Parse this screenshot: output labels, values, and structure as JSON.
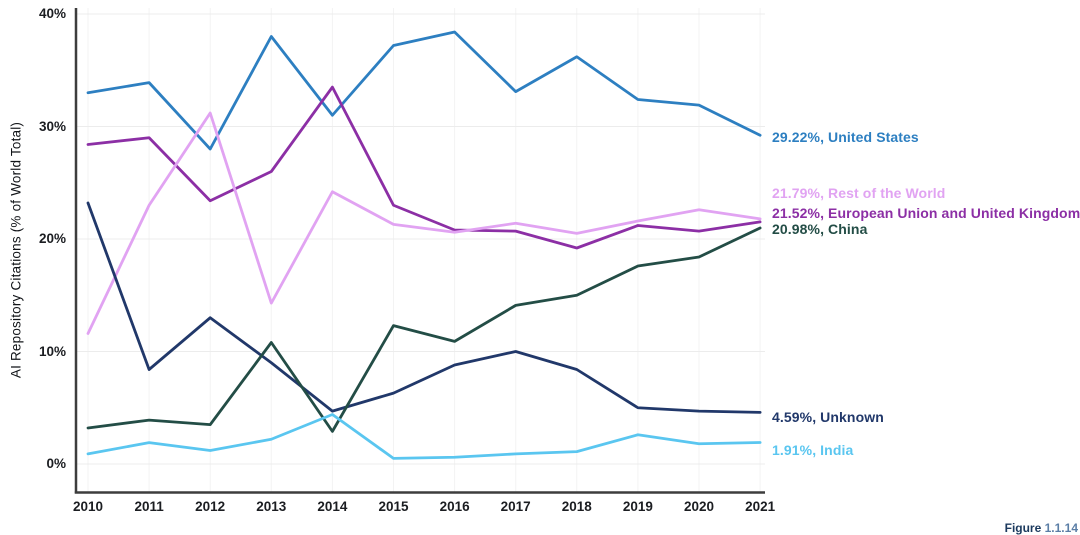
{
  "caption": {
    "prefix": "Figure",
    "number": "1.1.14"
  },
  "chart_data": {
    "type": "line",
    "title": "",
    "xlabel": "",
    "ylabel": "AI Repository Citations (% of World Total)",
    "x": [
      2010,
      2011,
      2012,
      2013,
      2014,
      2015,
      2016,
      2017,
      2018,
      2019,
      2020,
      2021
    ],
    "y_ticks": [
      {
        "label": "0%",
        "value": 0
      },
      {
        "label": "10%",
        "value": 10
      },
      {
        "label": "20%",
        "value": 20
      },
      {
        "label": "30%",
        "value": 30
      },
      {
        "label": "40%",
        "value": 40
      }
    ],
    "ylim": [
      -2.5,
      40.5
    ],
    "grid": true,
    "legend_position": "right-end-labels",
    "series": [
      {
        "name": "United States",
        "end_label": "29.22%, United States",
        "color": "#2d7fc1",
        "values": [
          33.0,
          33.9,
          28.0,
          38.0,
          31.0,
          37.2,
          38.4,
          33.1,
          36.2,
          32.4,
          31.9,
          29.22
        ]
      },
      {
        "name": "European Union and United Kingdom",
        "end_label": "21.52%, European Union and United Kingdom",
        "color": "#8c2fa5",
        "values": [
          28.4,
          29.0,
          23.4,
          26.0,
          33.5,
          23.0,
          20.8,
          20.7,
          19.2,
          21.2,
          20.7,
          21.52
        ]
      },
      {
        "name": "Rest of the World",
        "end_label": "21.79%, Rest of the World",
        "color": "#e1a3f2",
        "values": [
          11.6,
          23.0,
          31.2,
          14.3,
          24.2,
          21.3,
          20.6,
          21.4,
          20.5,
          21.6,
          22.6,
          21.79
        ]
      },
      {
        "name": "Unknown",
        "end_label": "4.59%, Unknown",
        "color": "#21386a",
        "values": [
          23.2,
          8.4,
          13.0,
          9.0,
          4.7,
          6.3,
          8.8,
          10.0,
          8.4,
          5.0,
          4.7,
          4.59
        ]
      },
      {
        "name": "China",
        "end_label": "20.98%, China",
        "color": "#234d46",
        "values": [
          3.2,
          3.9,
          3.5,
          10.8,
          2.9,
          12.3,
          10.9,
          14.1,
          15.0,
          17.6,
          18.4,
          20.98
        ]
      },
      {
        "name": "India",
        "end_label": "1.91%, India",
        "color": "#5ac6f0",
        "values": [
          0.9,
          1.9,
          1.2,
          2.2,
          4.4,
          0.5,
          0.6,
          0.9,
          1.1,
          2.6,
          1.8,
          1.91
        ]
      }
    ]
  }
}
